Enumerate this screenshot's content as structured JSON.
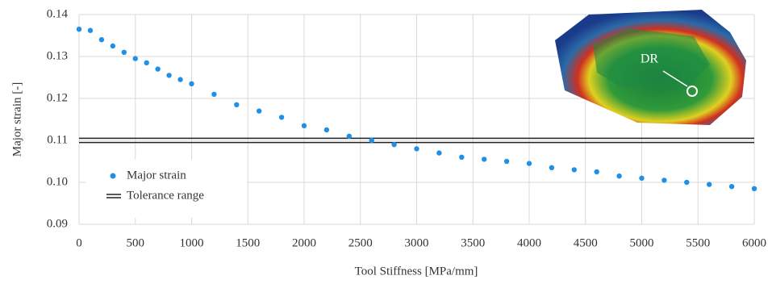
{
  "chart_data": {
    "type": "scatter",
    "xlabel": "Tool Stiffness [MPa/mm]",
    "ylabel": "Major strain [-]",
    "annotation": "DR",
    "x": [
      0,
      100,
      200,
      300,
      400,
      500,
      600,
      700,
      800,
      900,
      1000,
      1200,
      1400,
      1600,
      1800,
      2000,
      2200,
      2400,
      2600,
      2800,
      3000,
      3200,
      3400,
      3600,
      3800,
      4000,
      4200,
      4400,
      4600,
      4800,
      5000,
      5200,
      5400,
      5600,
      5800,
      6000
    ],
    "series": [
      {
        "name": "Major strain",
        "color": "#1e90e8",
        "values": [
          0.1365,
          0.1362,
          0.134,
          0.1325,
          0.131,
          0.1295,
          0.1285,
          0.127,
          0.1255,
          0.1245,
          0.1235,
          0.121,
          0.1185,
          0.117,
          0.1155,
          0.1135,
          0.1125,
          0.111,
          0.11,
          0.109,
          0.108,
          0.107,
          0.106,
          0.1055,
          0.105,
          0.1045,
          0.1035,
          0.103,
          0.1025,
          0.1015,
          0.101,
          0.1005,
          0.1,
          0.0995,
          0.099,
          0.0985
        ]
      }
    ],
    "tolerance_range": {
      "name": "Tolerance range",
      "color": "#222222",
      "values": [
        0.1095,
        0.1105
      ]
    },
    "xlim": [
      0,
      6000
    ],
    "xticks": [
      0,
      500,
      1000,
      1500,
      2000,
      2500,
      3000,
      3500,
      4000,
      4500,
      5000,
      5500,
      6000
    ],
    "ylim": [
      0.09,
      0.14
    ],
    "yticks": [
      0.09,
      {
        "value": 0.1,
        "label": "0.10"
      },
      0.11,
      0.12,
      0.13,
      0.14
    ],
    "grid": true
  }
}
